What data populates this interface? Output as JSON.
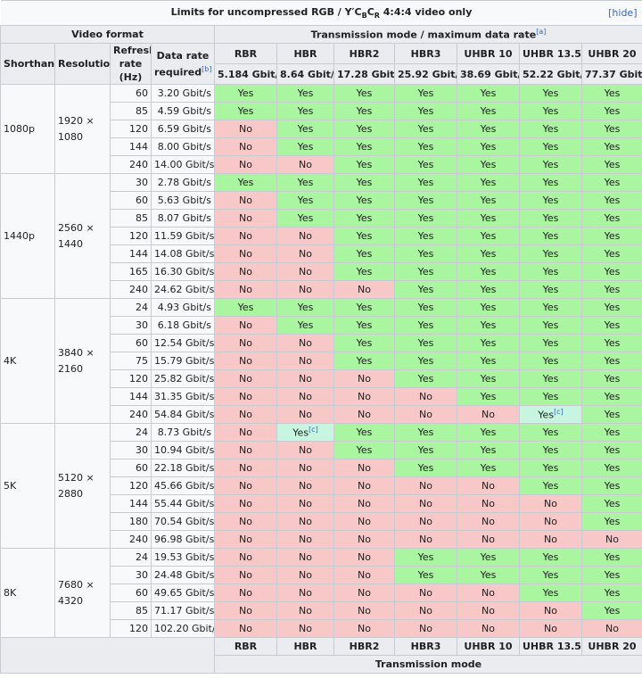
{
  "caption": "Limits for uncompressed RGB / Y′CBCR 4:4:4 video only",
  "caption_parts": {
    "pre": "Limits for uncompressed RGB / Y′C",
    "b": "B",
    "c": "C",
    "r": "R",
    "post": " 4:4:4 video only"
  },
  "hide_label": "hide",
  "header": {
    "video_format": "Video format",
    "transmission": "Transmission mode / maximum data rate",
    "transmission_ref": "[a]",
    "shorthand": "Shorthand",
    "resolution": "Resolution",
    "refresh": "Refresh rate (Hz)",
    "data_rate": "Data rate required",
    "data_rate_ref": "[b]",
    "modes": [
      "RBR",
      "HBR",
      "HBR2",
      "HBR3",
      "UHBR 10",
      "UHBR 13.5",
      "UHBR 20"
    ],
    "mode_rates": [
      "5.184 Gbit/s",
      "8.64 Gbit/s",
      "17.28 Gbit/s",
      "25.92 Gbit/s",
      "38.69 Gbit/s",
      "52.22 Gbit/s",
      "77.37 Gbit/s"
    ]
  },
  "footer": {
    "modes": [
      "RBR",
      "HBR",
      "HBR2",
      "HBR3",
      "UHBR 10",
      "UHBR 13.5",
      "UHBR 20"
    ],
    "label": "Transmission mode"
  },
  "colors": {
    "yes": "#a9f5a0",
    "no": "#f8c8c8",
    "partial": "#c8f5e0"
  },
  "groups": [
    {
      "shorthand": "1080p",
      "resolution": "1920 × 1080",
      "rows": [
        {
          "hz": "60",
          "rate": "3.20 Gbit/s",
          "cells": [
            "Yes",
            "Yes",
            "Yes",
            "Yes",
            "Yes",
            "Yes",
            "Yes"
          ]
        },
        {
          "hz": "85",
          "rate": "4.59 Gbit/s",
          "cells": [
            "Yes",
            "Yes",
            "Yes",
            "Yes",
            "Yes",
            "Yes",
            "Yes"
          ]
        },
        {
          "hz": "120",
          "rate": "6.59 Gbit/s",
          "cells": [
            "No",
            "Yes",
            "Yes",
            "Yes",
            "Yes",
            "Yes",
            "Yes"
          ]
        },
        {
          "hz": "144",
          "rate": "8.00 Gbit/s",
          "cells": [
            "No",
            "Yes",
            "Yes",
            "Yes",
            "Yes",
            "Yes",
            "Yes"
          ]
        },
        {
          "hz": "240",
          "rate": "14.00 Gbit/s",
          "cells": [
            "No",
            "No",
            "Yes",
            "Yes",
            "Yes",
            "Yes",
            "Yes"
          ]
        }
      ]
    },
    {
      "shorthand": "1440p",
      "resolution": "2560 × 1440",
      "rows": [
        {
          "hz": "30",
          "rate": "2.78 Gbit/s",
          "cells": [
            "Yes",
            "Yes",
            "Yes",
            "Yes",
            "Yes",
            "Yes",
            "Yes"
          ]
        },
        {
          "hz": "60",
          "rate": "5.63 Gbit/s",
          "cells": [
            "No",
            "Yes",
            "Yes",
            "Yes",
            "Yes",
            "Yes",
            "Yes"
          ]
        },
        {
          "hz": "85",
          "rate": "8.07 Gbit/s",
          "cells": [
            "No",
            "Yes",
            "Yes",
            "Yes",
            "Yes",
            "Yes",
            "Yes"
          ]
        },
        {
          "hz": "120",
          "rate": "11.59 Gbit/s",
          "cells": [
            "No",
            "No",
            "Yes",
            "Yes",
            "Yes",
            "Yes",
            "Yes"
          ]
        },
        {
          "hz": "144",
          "rate": "14.08 Gbit/s",
          "cells": [
            "No",
            "No",
            "Yes",
            "Yes",
            "Yes",
            "Yes",
            "Yes"
          ]
        },
        {
          "hz": "165",
          "rate": "16.30 Gbit/s",
          "cells": [
            "No",
            "No",
            "Yes",
            "Yes",
            "Yes",
            "Yes",
            "Yes"
          ]
        },
        {
          "hz": "240",
          "rate": "24.62 Gbit/s",
          "cells": [
            "No",
            "No",
            "No",
            "Yes",
            "Yes",
            "Yes",
            "Yes"
          ]
        }
      ]
    },
    {
      "shorthand": "4K",
      "resolution": "3840 × 2160",
      "rows": [
        {
          "hz": "24",
          "rate": "4.93 Gbit/s",
          "cells": [
            "Yes",
            "Yes",
            "Yes",
            "Yes",
            "Yes",
            "Yes",
            "Yes"
          ]
        },
        {
          "hz": "30",
          "rate": "6.18 Gbit/s",
          "cells": [
            "No",
            "Yes",
            "Yes",
            "Yes",
            "Yes",
            "Yes",
            "Yes"
          ]
        },
        {
          "hz": "60",
          "rate": "12.54 Gbit/s",
          "cells": [
            "No",
            "No",
            "Yes",
            "Yes",
            "Yes",
            "Yes",
            "Yes"
          ]
        },
        {
          "hz": "75",
          "rate": "15.79 Gbit/s",
          "cells": [
            "No",
            "No",
            "Yes",
            "Yes",
            "Yes",
            "Yes",
            "Yes"
          ]
        },
        {
          "hz": "120",
          "rate": "25.82 Gbit/s",
          "cells": [
            "No",
            "No",
            "No",
            "Yes",
            "Yes",
            "Yes",
            "Yes"
          ]
        },
        {
          "hz": "144",
          "rate": "31.35 Gbit/s",
          "cells": [
            "No",
            "No",
            "No",
            "No",
            "Yes",
            "Yes",
            "Yes"
          ]
        },
        {
          "hz": "240",
          "rate": "54.84 Gbit/s",
          "cells": [
            "No",
            "No",
            "No",
            "No",
            "No",
            "Yes[c]",
            "Yes"
          ]
        }
      ]
    },
    {
      "shorthand": "5K",
      "resolution": "5120 × 2880",
      "rows": [
        {
          "hz": "24",
          "rate": "8.73 Gbit/s",
          "cells": [
            "No",
            "Yes[c]",
            "Yes",
            "Yes",
            "Yes",
            "Yes",
            "Yes"
          ]
        },
        {
          "hz": "30",
          "rate": "10.94 Gbit/s",
          "cells": [
            "No",
            "No",
            "Yes",
            "Yes",
            "Yes",
            "Yes",
            "Yes"
          ]
        },
        {
          "hz": "60",
          "rate": "22.18 Gbit/s",
          "cells": [
            "No",
            "No",
            "No",
            "Yes",
            "Yes",
            "Yes",
            "Yes"
          ]
        },
        {
          "hz": "120",
          "rate": "45.66 Gbit/s",
          "cells": [
            "No",
            "No",
            "No",
            "No",
            "No",
            "Yes",
            "Yes"
          ]
        },
        {
          "hz": "144",
          "rate": "55.44 Gbit/s",
          "cells": [
            "No",
            "No",
            "No",
            "No",
            "No",
            "No",
            "Yes"
          ]
        },
        {
          "hz": "180",
          "rate": "70.54 Gbit/s",
          "cells": [
            "No",
            "No",
            "No",
            "No",
            "No",
            "No",
            "Yes"
          ]
        },
        {
          "hz": "240",
          "rate": "96.98 Gbit/s",
          "cells": [
            "No",
            "No",
            "No",
            "No",
            "No",
            "No",
            "No"
          ]
        }
      ]
    },
    {
      "shorthand": "8K",
      "resolution": "7680 × 4320",
      "rows": [
        {
          "hz": "24",
          "rate": "19.53 Gbit/s",
          "cells": [
            "No",
            "No",
            "No",
            "Yes",
            "Yes",
            "Yes",
            "Yes"
          ]
        },
        {
          "hz": "30",
          "rate": "24.48 Gbit/s",
          "cells": [
            "No",
            "No",
            "No",
            "Yes",
            "Yes",
            "Yes",
            "Yes"
          ]
        },
        {
          "hz": "60",
          "rate": "49.65 Gbit/s",
          "cells": [
            "No",
            "No",
            "No",
            "No",
            "No",
            "Yes",
            "Yes"
          ]
        },
        {
          "hz": "85",
          "rate": "71.17 Gbit/s",
          "cells": [
            "No",
            "No",
            "No",
            "No",
            "No",
            "No",
            "Yes"
          ]
        },
        {
          "hz": "120",
          "rate": "102.20 Gbit/s",
          "cells": [
            "No",
            "No",
            "No",
            "No",
            "No",
            "No",
            "No"
          ]
        }
      ]
    }
  ]
}
